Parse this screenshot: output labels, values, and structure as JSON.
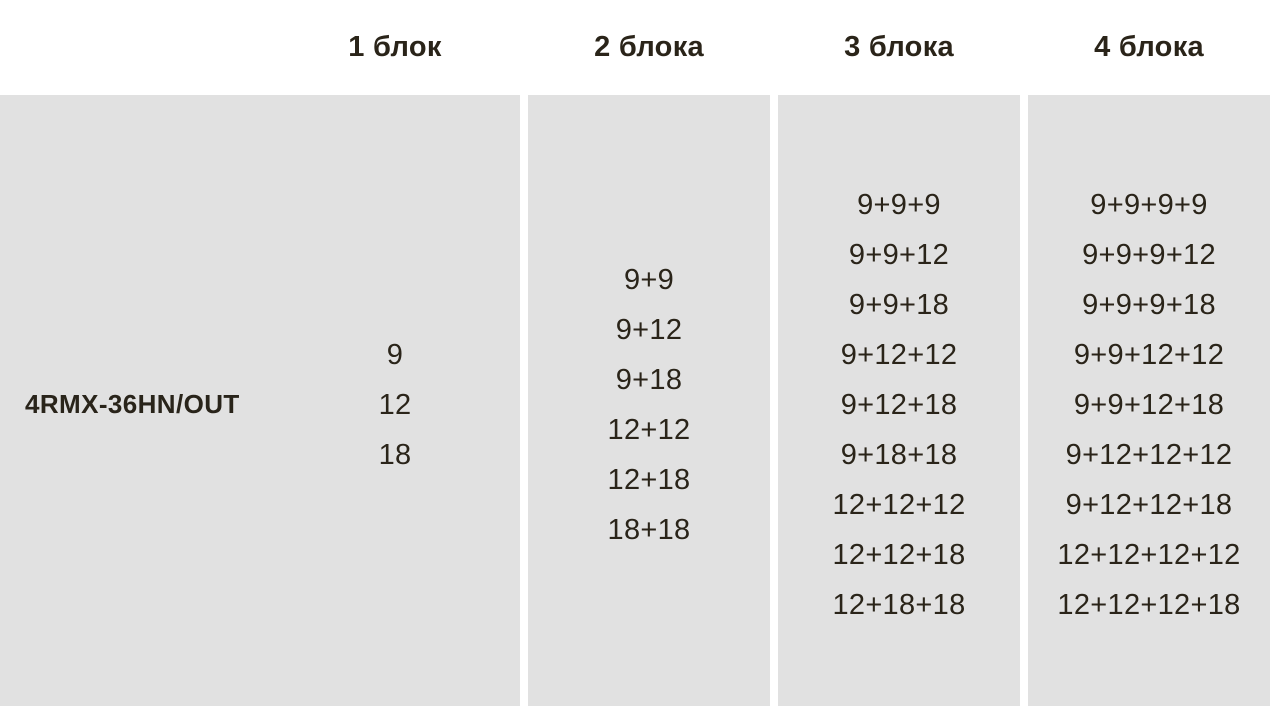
{
  "table": {
    "row_label": "4RMX-36HN/OUT",
    "columns": [
      {
        "header": "1 блок",
        "values": [
          "9",
          "12",
          "18"
        ]
      },
      {
        "header": "2 блока",
        "values": [
          "9+9",
          "9+12",
          "9+18",
          "12+12",
          "12+18",
          "18+18"
        ]
      },
      {
        "header": "3 блока",
        "values": [
          "9+9+9",
          "9+9+12",
          "9+9+18",
          "9+12+12",
          "9+12+18",
          "9+18+18",
          "12+12+12",
          "12+12+18",
          "12+18+18"
        ]
      },
      {
        "header": "4 блока",
        "values": [
          "9+9+9+9",
          "9+9+9+12",
          "9+9+9+18",
          "9+9+12+12",
          "9+9+12+18",
          "9+12+12+12",
          "9+12+12+18",
          "12+12+12+12",
          "12+12+12+18"
        ]
      }
    ],
    "colors": {
      "cell_background": "#e1e1e1",
      "header_background": "#ffffff",
      "text": "#2a2419"
    }
  }
}
